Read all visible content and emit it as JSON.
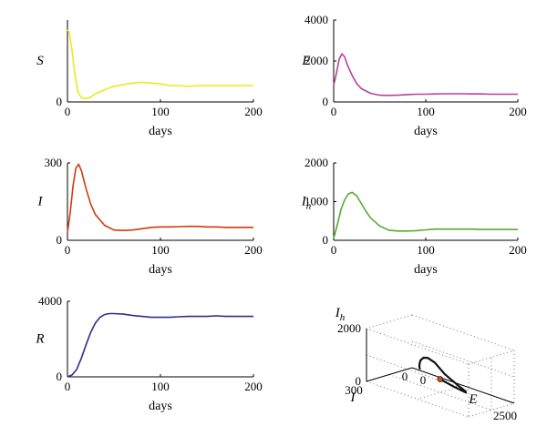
{
  "chart_data": [
    {
      "id": "S",
      "type": "line",
      "ylabel": "S",
      "xlabel": "days",
      "color": "#f0e81a",
      "xlim": [
        0,
        200
      ],
      "ylim": [
        0,
        1
      ],
      "xticks": [
        "0",
        "100",
        "200"
      ],
      "yticks": [
        "0"
      ],
      "series": [
        {
          "x": [
            0,
            2,
            5,
            8,
            11,
            15,
            20,
            25,
            30,
            40,
            50,
            60,
            70,
            80,
            90,
            100,
            110,
            120,
            130,
            140,
            150,
            160,
            170,
            180,
            190,
            200
          ],
          "y": [
            0.88,
            0.85,
            0.62,
            0.33,
            0.13,
            0.05,
            0.04,
            0.06,
            0.1,
            0.15,
            0.19,
            0.21,
            0.23,
            0.24,
            0.23,
            0.22,
            0.2,
            0.2,
            0.19,
            0.2,
            0.2,
            0.2,
            0.2,
            0.2,
            0.2,
            0.2
          ]
        }
      ]
    },
    {
      "id": "E",
      "type": "line",
      "ylabel": "E",
      "xlabel": "days",
      "color": "#b8419a",
      "xlim": [
        0,
        200
      ],
      "ylim": [
        0,
        4000
      ],
      "xticks": [
        "0",
        "100",
        "200"
      ],
      "yticks": [
        "0",
        "2000",
        "4000"
      ],
      "series": [
        {
          "x": [
            0,
            3,
            6,
            9,
            12,
            15,
            20,
            25,
            30,
            40,
            50,
            60,
            70,
            80,
            90,
            100,
            110,
            120,
            130,
            140,
            150,
            160,
            170,
            180,
            190,
            200
          ],
          "y": [
            800,
            1400,
            2100,
            2350,
            2200,
            1800,
            1300,
            900,
            650,
            420,
            330,
            320,
            330,
            360,
            380,
            380,
            390,
            400,
            400,
            400,
            390,
            390,
            380,
            380,
            380,
            380
          ]
        }
      ]
    },
    {
      "id": "I",
      "type": "line",
      "ylabel": "I",
      "xlabel": "days",
      "color": "#d03a10",
      "xlim": [
        0,
        200
      ],
      "ylim": [
        0,
        300
      ],
      "xticks": [
        "0",
        "100",
        "200"
      ],
      "yticks": [
        "0",
        "300"
      ],
      "series": [
        {
          "x": [
            0,
            3,
            6,
            9,
            12,
            15,
            20,
            25,
            30,
            40,
            50,
            60,
            70,
            80,
            90,
            100,
            110,
            120,
            130,
            140,
            150,
            160,
            170,
            180,
            190,
            200
          ],
          "y": [
            30,
            110,
            210,
            280,
            295,
            270,
            200,
            140,
            100,
            58,
            40,
            38,
            40,
            45,
            50,
            52,
            52,
            53,
            54,
            54,
            52,
            52,
            50,
            50,
            50,
            50
          ]
        }
      ]
    },
    {
      "id": "Ih",
      "type": "line",
      "ylabel": "I",
      "ylabel_sub": "h",
      "xlabel": "days",
      "color": "#5aa832",
      "xlim": [
        0,
        200
      ],
      "ylim": [
        0,
        2000
      ],
      "xticks": [
        "0",
        "100",
        "200"
      ],
      "yticks": [
        "0",
        "1000",
        "2000"
      ],
      "series": [
        {
          "x": [
            0,
            4,
            8,
            12,
            16,
            20,
            25,
            30,
            35,
            40,
            50,
            60,
            70,
            80,
            90,
            100,
            110,
            120,
            130,
            140,
            150,
            160,
            170,
            180,
            190,
            200
          ],
          "y": [
            50,
            400,
            800,
            1050,
            1200,
            1240,
            1150,
            950,
            750,
            580,
            370,
            260,
            240,
            240,
            250,
            270,
            290,
            290,
            290,
            290,
            290,
            280,
            280,
            280,
            280,
            280
          ]
        }
      ]
    },
    {
      "id": "R",
      "type": "line",
      "ylabel": "R",
      "xlabel": "days",
      "color": "#2e2e8c",
      "xlim": [
        0,
        200
      ],
      "ylim": [
        0,
        4000
      ],
      "xticks": [
        "0",
        "100",
        "200"
      ],
      "yticks": [
        "0",
        "4000"
      ],
      "series": [
        {
          "x": [
            0,
            5,
            10,
            15,
            20,
            25,
            30,
            35,
            40,
            45,
            50,
            60,
            70,
            80,
            90,
            100,
            110,
            120,
            130,
            140,
            150,
            160,
            170,
            180,
            190,
            200
          ],
          "y": [
            0,
            100,
            400,
            1000,
            1700,
            2350,
            2850,
            3150,
            3300,
            3350,
            3350,
            3320,
            3250,
            3200,
            3150,
            3150,
            3150,
            3180,
            3200,
            3200,
            3200,
            3230,
            3200,
            3200,
            3200,
            3200
          ]
        }
      ]
    },
    {
      "id": "phase3d",
      "type": "line3d",
      "zlabel": "I",
      "zlabel_sub": "h",
      "ylabel_front": "I",
      "xlabel_front": "E",
      "color": "#111111",
      "marker_color": "#c8501a",
      "zticks": [
        "2000",
        "0"
      ],
      "iticks": [
        "300",
        "0"
      ],
      "eticks": [
        "0",
        "2500"
      ],
      "i_lim": [
        0,
        300
      ],
      "e_lim": [
        0,
        2500
      ],
      "ih_lim": [
        0,
        2000
      ],
      "series": [
        {
          "E": [
            800,
            1400,
            2100,
            2350,
            2200,
            1800,
            1300,
            900,
            650,
            420,
            330,
            320,
            360,
            380,
            390,
            380
          ],
          "I": [
            30,
            110,
            210,
            280,
            295,
            270,
            200,
            140,
            100,
            58,
            40,
            38,
            45,
            52,
            53,
            50
          ],
          "Ih": [
            50,
            250,
            550,
            850,
            1050,
            1200,
            1240,
            1100,
            900,
            600,
            370,
            260,
            240,
            270,
            290,
            280
          ]
        }
      ]
    }
  ]
}
